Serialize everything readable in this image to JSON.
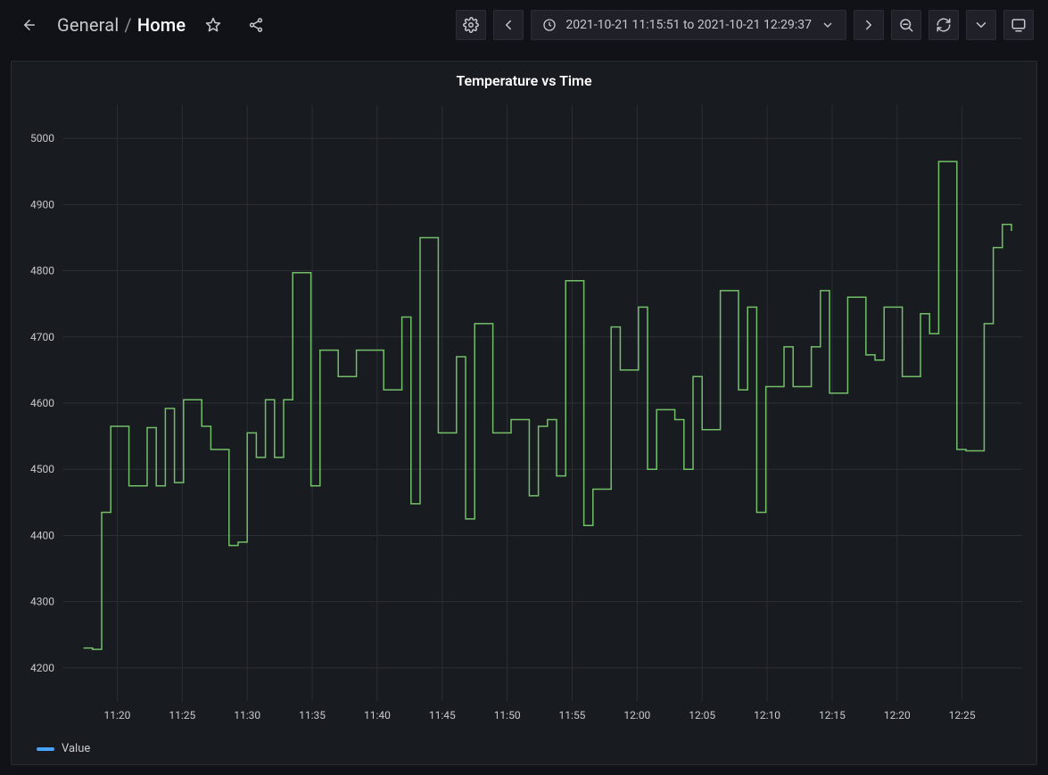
{
  "toolbar": {
    "breadcrumb_folder": "General",
    "breadcrumb_separator": "/",
    "breadcrumb_page": "Home",
    "time_range_text": "2021-10-21 11:15:51 to 2021-10-21 12:29:37"
  },
  "panel": {
    "title": "Temperature vs Time"
  },
  "legend": {
    "series_label": "Value",
    "series_color": "#4aa3ff"
  },
  "chart": {
    "type": "line",
    "background_color": "#181b1f",
    "grid_color": "#2c2f36",
    "axis_text_color": "#c7c8cc",
    "axis_fontsize": 12,
    "line_color": "#73bf69",
    "line_width": 1.5,
    "ylim": [
      4150,
      5050
    ],
    "ytick_step": 100,
    "yticks": [
      4200,
      4300,
      4400,
      4500,
      4600,
      4700,
      4800,
      4900,
      5000
    ],
    "xtick_step_minutes": 5,
    "xticks_labels": [
      "11:20",
      "11:25",
      "11:30",
      "11:35",
      "11:40",
      "11:45",
      "11:50",
      "11:55",
      "12:00",
      "12:05",
      "12:10",
      "12:15",
      "12:20",
      "12:25"
    ],
    "xrange_minutes": [
      15.85,
      29.62
    ],
    "data": {
      "t_minutes": [
        17.4,
        18.1,
        18.8,
        19.5,
        20.2,
        20.9,
        21.6,
        22.3,
        23.0,
        23.7,
        24.4,
        25.1,
        25.8,
        26.5,
        27.2,
        27.9,
        28.6,
        29.3,
        30.0,
        30.7,
        31.4,
        32.1,
        32.8,
        33.5,
        34.2,
        34.9,
        35.6,
        36.3,
        37.0,
        37.7,
        38.4,
        39.1,
        39.8,
        40.5,
        41.2,
        41.9,
        42.6,
        43.3,
        44.0,
        44.7,
        45.4,
        46.1,
        46.8,
        47.5,
        48.2,
        48.9,
        49.6,
        50.3,
        51.0,
        51.7,
        52.4,
        53.1,
        53.8,
        54.5,
        55.2,
        55.9,
        56.6,
        57.3,
        58.0,
        58.7,
        59.4,
        60.1,
        60.8,
        61.5,
        62.2,
        62.9,
        63.6,
        64.3,
        65.0,
        65.7,
        66.4,
        67.1,
        67.8,
        68.5,
        69.2,
        69.9,
        70.6,
        71.3,
        72.0,
        72.7,
        73.4,
        74.1,
        74.8,
        75.5,
        76.2,
        76.9,
        77.6,
        78.3,
        79.0,
        79.7,
        80.4,
        81.1,
        81.8,
        82.5,
        83.2,
        83.9,
        84.6,
        85.3,
        86.0,
        86.7,
        87.4,
        88.1,
        88.8
      ],
      "y": [
        4230,
        4228,
        4435,
        4565,
        4565,
        4475,
        4475,
        4563,
        4475,
        4592,
        4480,
        4605,
        4605,
        4565,
        4530,
        4530,
        4385,
        4390,
        4555,
        4518,
        4605,
        4518,
        4605,
        4797,
        4797,
        4475,
        4680,
        4680,
        4640,
        4640,
        4680,
        4680,
        4680,
        4620,
        4620,
        4730,
        4448,
        4850,
        4850,
        4555,
        4555,
        4670,
        4425,
        4720,
        4720,
        4555,
        4555,
        4575,
        4575,
        4460,
        4565,
        4575,
        4490,
        4785,
        4785,
        4415,
        4470,
        4470,
        4715,
        4650,
        4650,
        4745,
        4500,
        4590,
        4590,
        4575,
        4500,
        4640,
        4560,
        4560,
        4770,
        4770,
        4620,
        4745,
        4435,
        4625,
        4625,
        4685,
        4625,
        4625,
        4685,
        4770,
        4615,
        4615,
        4760,
        4760,
        4673,
        4665,
        4745,
        4745,
        4640,
        4640,
        4735,
        4705,
        4965,
        4965,
        4530,
        4528,
        4528,
        4720,
        4835,
        4870,
        4860
      ]
    }
  }
}
